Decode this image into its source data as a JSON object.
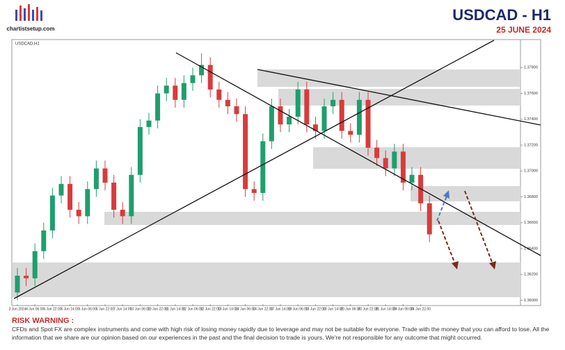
{
  "header": {
    "brand": "chartistsetup.com",
    "title": "USDCAD - H1",
    "subtitle": "25 JUNE 2024"
  },
  "chart_data": {
    "type": "candlestick",
    "title": "USDCAD,H1",
    "categories": [
      "3 Jun 2024",
      null,
      "4 Jun 06:00",
      null,
      "4 Jun 22:00",
      null,
      "5 Jun 14:00",
      null,
      "6 Jun 06:00",
      null,
      "6 Jun 22:00",
      null,
      "7 Jun 14:00",
      null,
      "10 Jun 06:00",
      null,
      "10 Jun 22:00",
      null,
      "11 Jun 14:00",
      null,
      "12 Jun 06:00",
      null,
      "12 Jun 22:00",
      null,
      "13 Jun 14:00",
      null,
      "14 Jun 06:00",
      null,
      "14 Jun 22:00",
      null,
      "17 Jun 14:00",
      null,
      "18 Jun 06:00",
      null,
      "18 Jun 22:00",
      null,
      "19 Jun 14:00",
      null,
      "20 Jun 06:00",
      null,
      "20 Jun 22:00",
      null,
      "21 Jun 14:00",
      null,
      "24 Jun 06:00",
      null,
      "24 Jun 22:00",
      null
    ],
    "open": [
      1.3606,
      1.3619,
      1.3617,
      1.3638,
      1.3654,
      1.3681,
      1.369,
      1.367,
      1.3665,
      1.3686,
      1.3702,
      1.3691,
      1.367,
      1.3665,
      1.3697,
      1.3734,
      1.3739,
      1.376,
      1.3766,
      1.3755,
      1.3768,
      1.3774,
      1.3782,
      1.3763,
      1.3755,
      1.375,
      1.3744,
      1.3686,
      1.3683,
      1.3723,
      1.375,
      1.3736,
      1.3742,
      1.3763,
      1.3736,
      1.3731,
      1.375,
      1.3755,
      1.3731,
      1.3728,
      1.3755,
      1.3718,
      1.371,
      1.3702,
      1.3715,
      1.3691,
      1.3697,
      1.3675
    ],
    "high": [
      1.3625,
      1.3625,
      1.3644,
      1.366,
      1.3687,
      1.3696,
      1.3696,
      1.3676,
      1.3692,
      1.3708,
      1.3708,
      1.3697,
      1.3676,
      1.3703,
      1.374,
      1.3745,
      1.3766,
      1.3772,
      1.3772,
      1.3774,
      1.378,
      1.3791,
      1.3788,
      1.3769,
      1.3761,
      1.3756,
      1.375,
      1.3692,
      1.3729,
      1.3756,
      1.3756,
      1.3748,
      1.3769,
      1.3769,
      1.3742,
      1.3756,
      1.3761,
      1.3761,
      1.3737,
      1.3761,
      1.3761,
      1.3724,
      1.3716,
      1.3721,
      1.3721,
      1.3703,
      1.3703,
      1.3681
    ],
    "low": [
      1.36,
      1.3611,
      1.3611,
      1.3632,
      1.3648,
      1.3675,
      1.3664,
      1.3659,
      1.3659,
      1.368,
      1.3685,
      1.3664,
      1.3659,
      1.3659,
      1.3691,
      1.3728,
      1.3733,
      1.3754,
      1.3749,
      1.3749,
      1.3762,
      1.3768,
      1.3757,
      1.3749,
      1.3744,
      1.3738,
      1.368,
      1.3677,
      1.3677,
      1.3717,
      1.373,
      1.373,
      1.3736,
      1.373,
      1.3725,
      1.3725,
      1.3744,
      1.3725,
      1.3722,
      1.3722,
      1.3712,
      1.3704,
      1.3696,
      1.3696,
      1.3685,
      1.3685,
      1.3669,
      1.3645
    ],
    "close": [
      1.3619,
      1.3617,
      1.3638,
      1.3654,
      1.3681,
      1.369,
      1.367,
      1.3665,
      1.3686,
      1.3702,
      1.3691,
      1.367,
      1.3665,
      1.3697,
      1.3734,
      1.3739,
      1.376,
      1.3766,
      1.3755,
      1.3768,
      1.3774,
      1.3782,
      1.3763,
      1.3755,
      1.375,
      1.3744,
      1.3686,
      1.3683,
      1.3723,
      1.375,
      1.3736,
      1.3742,
      1.3763,
      1.3736,
      1.3731,
      1.375,
      1.3755,
      1.3731,
      1.3728,
      1.3755,
      1.3718,
      1.371,
      1.3702,
      1.3715,
      1.3691,
      1.3697,
      1.3675,
      1.3651
    ],
    "up_color": "#1f9e6e",
    "down_color": "#d63c3c",
    "ylim": [
      1.3597,
      1.38
    ],
    "yticks": [
      {
        "value": 1.36,
        "label": "1.36000"
      },
      {
        "value": 1.362,
        "label": "1.36200"
      },
      {
        "value": 1.364,
        "label": "1.36400"
      },
      {
        "value": 1.366,
        "label": "1.36600"
      },
      {
        "value": 1.368,
        "label": "1.36800"
      },
      {
        "value": 1.37,
        "label": "1.37000"
      },
      {
        "value": 1.372,
        "label": "1.37200"
      },
      {
        "value": 1.374,
        "label": "1.37400"
      },
      {
        "value": 1.376,
        "label": "1.37600"
      },
      {
        "value": 1.378,
        "label": "1.37800"
      }
    ]
  },
  "risk": {
    "heading": "RISK WARNING :",
    "text": "CFDs and Spot FX are complex instruments and come with high risk of losing money rapidly due to leverage and may not be suitable for everyone. Trade with the money that you can afford to lose. All the information that we share are our opinion based on our experiences in the past and the final decision to trade is yours. We're not responsible for any outcome that might occurred."
  }
}
